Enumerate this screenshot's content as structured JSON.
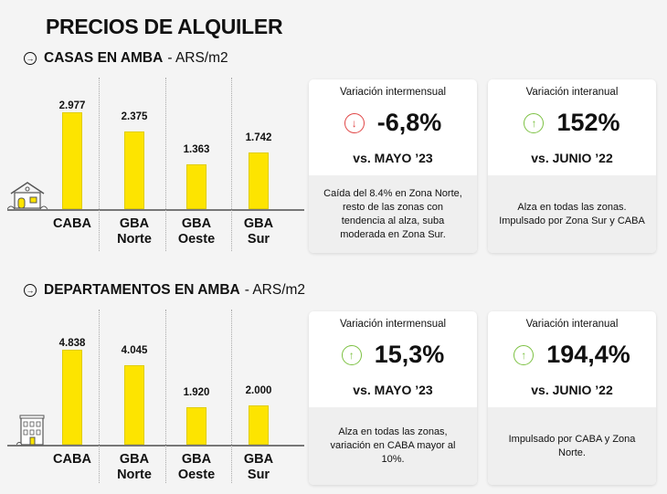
{
  "title": "PRECIOS DE ALQUILER",
  "colors": {
    "bar": "#fde400",
    "down": "#e04545",
    "up": "#7cc142"
  },
  "sections": [
    {
      "title": "CASAS EN AMBA",
      "unit": "- ARS/m2",
      "icon": "house-icon",
      "chart_data": {
        "type": "bar",
        "categories": [
          "CABA",
          "GBA Norte",
          "GBA Oeste",
          "GBA Sur"
        ],
        "category_lines": [
          [
            "CABA",
            ""
          ],
          [
            "GBA",
            "Norte"
          ],
          [
            "GBA",
            "Oeste"
          ],
          [
            "GBA",
            "Sur"
          ]
        ],
        "values": [
          2977,
          2375,
          1363,
          1742
        ],
        "labels": [
          "2.977",
          "2.375",
          "1.363",
          "1.742"
        ]
      },
      "cards": [
        {
          "label": "Variación intermensual",
          "value": "-6,8%",
          "direction": "down",
          "vs": "vs. MAYO ’23",
          "note": "Caída del 8.4% en Zona Norte, resto de las zonas con tendencia al alza, suba moderada en Zona Sur."
        },
        {
          "label": "Variación interanual",
          "value": "152%",
          "direction": "up",
          "vs": "vs. JUNIO ’22",
          "note": "Alza en todas las zonas. Impulsado por Zona Sur y CABA"
        }
      ]
    },
    {
      "title": "DEPARTAMENTOS EN AMBA",
      "unit": "- ARS/m2",
      "icon": "building-icon",
      "chart_data": {
        "type": "bar",
        "categories": [
          "CABA",
          "GBA Norte",
          "GBA Oeste",
          "GBA Sur"
        ],
        "category_lines": [
          [
            "CABA",
            ""
          ],
          [
            "GBA",
            "Norte"
          ],
          [
            "GBA",
            "Oeste"
          ],
          [
            "GBA",
            "Sur"
          ]
        ],
        "values": [
          4838,
          4045,
          1920,
          2000
        ],
        "labels": [
          "4.838",
          "4.045",
          "1.920",
          "2.000"
        ]
      },
      "cards": [
        {
          "label": "Variación intermensual",
          "value": "15,3%",
          "direction": "up",
          "vs": "vs. MAYO ’23",
          "note": "Alza en todas las zonas, variación en CABA mayor al 10%."
        },
        {
          "label": "Variación interanual",
          "value": "194,4%",
          "direction": "up",
          "vs": "vs. JUNIO ’22",
          "note": "Impulsado por CABA y Zona Norte."
        }
      ]
    }
  ]
}
